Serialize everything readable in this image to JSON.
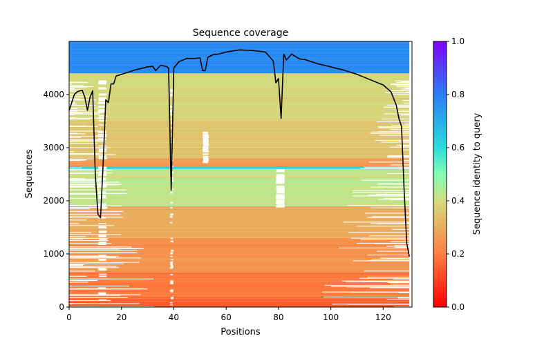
{
  "chart_data": [
    {
      "type": "heatmap",
      "title": "Sequence coverage",
      "xlabel": "Positions",
      "ylabel": "Sequences",
      "xlim": [
        0,
        131
      ],
      "ylim": [
        0,
        5000
      ],
      "xticks": [
        0,
        20,
        40,
        60,
        80,
        100,
        120
      ],
      "yticks": [
        0,
        1000,
        2000,
        3000,
        4000
      ],
      "grid": false,
      "colormap": "rainbow",
      "identity_bands": [
        {
          "y0": 0,
          "y1": 150,
          "identity": 0.14
        },
        {
          "y0": 150,
          "y1": 650,
          "identity": 0.19
        },
        {
          "y0": 650,
          "y1": 1300,
          "identity": 0.24
        },
        {
          "y0": 1300,
          "y1": 1900,
          "identity": 0.3
        },
        {
          "y0": 1900,
          "y1": 2600,
          "identity": 0.42
        },
        {
          "y0": 2600,
          "y1": 2650,
          "identity": 0.62
        },
        {
          "y0": 2650,
          "y1": 2800,
          "identity": 0.26
        },
        {
          "y0": 2800,
          "y1": 3500,
          "identity": 0.35
        },
        {
          "y0": 3500,
          "y1": 4400,
          "identity": 0.39
        },
        {
          "y0": 4400,
          "y1": 5000,
          "identity": 0.78
        }
      ],
      "coverage_line": {
        "color": "#000000",
        "x": [
          0,
          1,
          2,
          3,
          4,
          5,
          6,
          7,
          8,
          9,
          10,
          11,
          12,
          13,
          14,
          15,
          16,
          17,
          18,
          20,
          25,
          30,
          32,
          33,
          35,
          37,
          38,
          39,
          40,
          42,
          45,
          48,
          50,
          51,
          52,
          53,
          55,
          57,
          60,
          65,
          70,
          75,
          78,
          79,
          80,
          81,
          82,
          83,
          85,
          88,
          90,
          95,
          100,
          105,
          110,
          115,
          120,
          123,
          125,
          126,
          127,
          128,
          129,
          130
        ],
        "y": [
          3700,
          3850,
          4000,
          4050,
          4070,
          4080,
          3950,
          3700,
          3950,
          4070,
          2500,
          1750,
          1680,
          2700,
          3900,
          3850,
          4200,
          4200,
          4350,
          4380,
          4460,
          4520,
          4530,
          4450,
          4550,
          4530,
          4500,
          2200,
          4500,
          4620,
          4680,
          4680,
          4690,
          4450,
          4450,
          4700,
          4750,
          4760,
          4800,
          4840,
          4830,
          4800,
          4630,
          4220,
          4300,
          3550,
          4760,
          4650,
          4760,
          4670,
          4660,
          4580,
          4520,
          4460,
          4380,
          4280,
          4180,
          4050,
          3800,
          3550,
          3400,
          2200,
          1200,
          950
        ]
      }
    },
    {
      "type": "colorbar",
      "label": "Sequence identity to query",
      "ticks": [
        0.0,
        0.2,
        0.4,
        0.6,
        0.8,
        1.0
      ],
      "range": [
        0.0,
        1.0
      ]
    }
  ]
}
